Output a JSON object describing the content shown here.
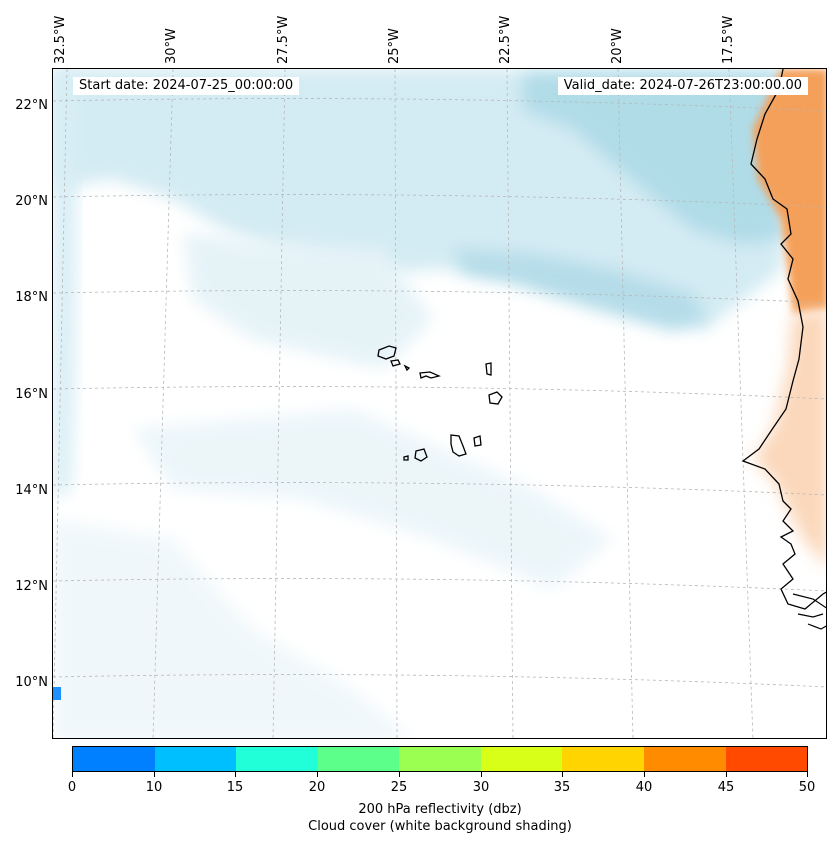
{
  "header": {
    "start_date": "Start date: 2024-07-25_00:00:00",
    "valid_date": "Valid_date: 2024-07-26T23:00:00.00"
  },
  "map": {
    "lon_labels": [
      "32.5°W",
      "30°W",
      "27.5°W",
      "25°W",
      "22.5°W",
      "20°W",
      "17.5°W"
    ],
    "lat_labels": [
      "22°N",
      "20°N",
      "18°N",
      "16°N",
      "14°N",
      "12°N",
      "10°N"
    ],
    "gridlines": true,
    "colors": {
      "cloud": "#a8d8e6",
      "land_heat": "#f4a05a",
      "coast": "#000000",
      "marker": "#1e90ff"
    }
  },
  "colorbar": {
    "ticks": [
      "0",
      "10",
      "15",
      "20",
      "25",
      "30",
      "35",
      "40",
      "45",
      "50"
    ],
    "colors": [
      "#007fff",
      "#00bfff",
      "#20ffd8",
      "#5cff8a",
      "#9bff52",
      "#d8ff18",
      "#ffd400",
      "#ff8c00",
      "#ff4a00"
    ],
    "label_line1": "200 hPa reflectivity (dbz)",
    "label_line2": "Cloud cover (white background shading)"
  }
}
